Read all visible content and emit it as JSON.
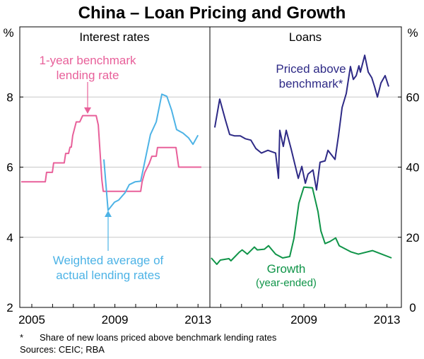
{
  "chart_data": [
    {
      "type": "line",
      "title": "China – Loan Pricing and Growth",
      "panel_title": "Interest rates",
      "ylabel": "%",
      "ylim": [
        2,
        10
      ],
      "yticks": [
        2,
        4,
        6,
        8
      ],
      "xlim": [
        2004.45,
        2013.6
      ],
      "xticks": [
        2005,
        2009,
        2013
      ],
      "grid": true,
      "series": [
        {
          "name": "1-year benchmark lending rate",
          "color": "#e8609a",
          "x": [
            2004.49,
            2005.65,
            2005.71,
            2005.99,
            2006.05,
            2006.56,
            2006.63,
            2006.77,
            2006.84,
            2006.9,
            2006.97,
            2007.14,
            2007.31,
            2007.45,
            2008.1,
            2008.2,
            2008.37,
            2008.44,
            2010.24,
            2010.31,
            2010.44,
            2010.65,
            2010.78,
            2010.99,
            2011.05,
            2011.94,
            2012.07,
            2013.16
          ],
          "y": [
            5.58,
            5.58,
            5.85,
            5.85,
            6.12,
            6.12,
            6.39,
            6.39,
            6.57,
            6.57,
            6.9,
            7.29,
            7.29,
            7.47,
            7.47,
            7.2,
            5.65,
            5.31,
            5.31,
            5.58,
            5.85,
            6.1,
            6.31,
            6.31,
            6.56,
            6.56,
            6.0,
            6.0
          ]
        },
        {
          "name": "Weighted average of actual lending rates",
          "color": "#4db3e6",
          "x": [
            2008.47,
            2008.67,
            2008.98,
            2009.18,
            2009.49,
            2009.69,
            2009.97,
            2010.24,
            2010.71,
            2010.99,
            2011.26,
            2011.5,
            2011.73,
            2011.97,
            2012.28,
            2012.55,
            2012.76,
            2013.0
          ],
          "y": [
            6.22,
            4.77,
            5.0,
            5.06,
            5.27,
            5.5,
            5.58,
            5.6,
            6.93,
            7.29,
            8.08,
            8.02,
            7.62,
            7.07,
            6.97,
            6.83,
            6.65,
            6.91
          ]
        }
      ]
    },
    {
      "type": "line",
      "panel_title": "Loans",
      "ylabel": "%",
      "ylim": [
        0,
        80
      ],
      "yticks": [
        0,
        20,
        40,
        60
      ],
      "xlim": [
        2004.45,
        2013.7
      ],
      "xticks": [
        2009,
        2013
      ],
      "grid": true,
      "series": [
        {
          "name": "Priced above benchmark*",
          "color": "#2e2a86",
          "x": [
            2004.71,
            2004.95,
            2005.22,
            2005.43,
            2005.67,
            2005.94,
            2006.18,
            2006.45,
            2006.69,
            2006.96,
            2007.27,
            2007.64,
            2007.78,
            2007.84,
            2008.01,
            2008.15,
            2008.39,
            2008.73,
            2008.9,
            2009.07,
            2009.2,
            2009.44,
            2009.61,
            2009.78,
            2010.02,
            2010.16,
            2010.5,
            2010.67,
            2010.84,
            2011.04,
            2011.24,
            2011.38,
            2011.52,
            2011.65,
            2011.72,
            2011.93,
            2012.1,
            2012.27,
            2012.4,
            2012.54,
            2012.71,
            2012.91,
            2013.08
          ],
          "y": [
            51.3,
            59.4,
            53.5,
            49.3,
            48.9,
            48.9,
            48.1,
            47.7,
            45.3,
            44.0,
            44.8,
            44.0,
            36.8,
            50.5,
            45.9,
            50.5,
            45.1,
            36.8,
            40.2,
            35.4,
            38.0,
            39.2,
            33.5,
            41.4,
            41.8,
            44.8,
            42.2,
            49.1,
            57.0,
            61.0,
            68.7,
            65.0,
            66.1,
            68.9,
            67.1,
            71.9,
            67.1,
            65.5,
            63.0,
            60.0,
            64.0,
            66.1,
            63.0
          ]
        },
        {
          "name": "Growth",
          "name_sub": "(year-ended)",
          "color": "#0f9448",
          "x": [
            2004.54,
            2004.81,
            2004.98,
            2005.39,
            2005.49,
            2005.9,
            2006.03,
            2006.28,
            2006.62,
            2006.76,
            2007.1,
            2007.3,
            2007.64,
            2007.98,
            2008.32,
            2008.52,
            2008.76,
            2009.0,
            2009.41,
            2009.68,
            2009.82,
            2010.02,
            2010.26,
            2010.53,
            2010.7,
            2011.28,
            2011.62,
            2012.3,
            2012.74,
            2013.22
          ],
          "y": [
            14.1,
            12.3,
            13.5,
            13.9,
            13.3,
            15.8,
            16.4,
            15.2,
            17.2,
            16.4,
            16.6,
            17.6,
            15.2,
            14.1,
            14.5,
            19.6,
            29.7,
            34.3,
            34.1,
            27.3,
            21.8,
            18.2,
            18.8,
            19.8,
            17.6,
            15.8,
            15.2,
            16.2,
            15.2,
            14.1
          ]
        }
      ]
    }
  ],
  "labels": {
    "benchmark_line1": "1-year benchmark",
    "benchmark_line2": "lending rate",
    "weighted_line1": "Weighted average of",
    "weighted_line2": "actual lending rates",
    "priced_line1": "Priced above",
    "priced_line2": "benchmark*"
  },
  "footnote": {
    "marker": "*",
    "text": "Share of new loans priced above benchmark lending rates",
    "sources": "Sources: CEIC; RBA"
  }
}
